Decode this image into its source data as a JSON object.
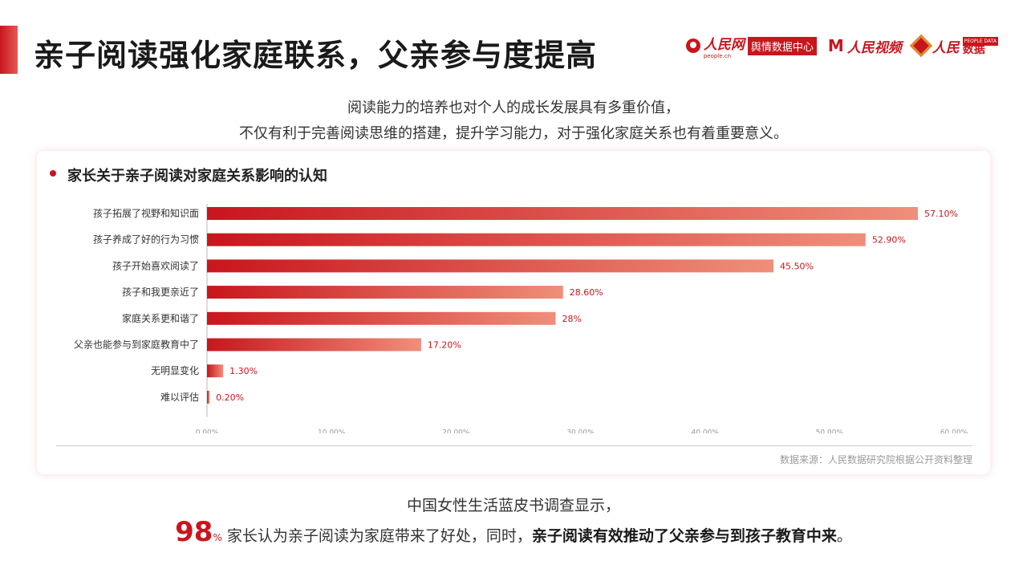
{
  "header": {
    "title": "亲子阅读强化家庭联系，父亲参与度提高",
    "accent_color": "#c8161d"
  },
  "logos": {
    "people_net": "人民网",
    "people_net_sub": "people.cn",
    "yuqing": "舆情数据中心",
    "people_video": "人民视频",
    "people_data_cn": "人民",
    "people_data_en": "PEOPLE DATA",
    "people_data_word": "数据"
  },
  "intro": {
    "line1": "阅读能力的培养也对个人的成长发展具有多重价值，",
    "line2": "不仅有利于完善阅读思维的搭建，提升学习能力，对于强化家庭关系也有着重要意义。"
  },
  "card": {
    "title": "家长关于亲子阅读对家庭关系影响的认知",
    "source": "数据来源：人民数据研究院根据公开资料整理"
  },
  "chart_data": {
    "type": "bar",
    "orientation": "horizontal",
    "categories": [
      "孩子拓展了视野和知识面",
      "孩子养成了好的行为习惯",
      "孩子开始喜欢阅读了",
      "孩子和我更亲近了",
      "家庭关系更和谐了",
      "父亲也能参与到家庭教育中了",
      "无明显变化",
      "难以评估"
    ],
    "values": [
      57.1,
      52.9,
      45.5,
      28.6,
      28,
      17.2,
      1.3,
      0.2
    ],
    "data_labels": [
      "57.10%",
      "52.90%",
      "45.50%",
      "28.60%",
      "28%",
      "17.20%",
      "1.30%",
      "0.20%"
    ],
    "xlim": [
      0,
      60
    ],
    "xticks": [
      "0.00%",
      "10.00%",
      "20.00%",
      "30.00%",
      "40.00%",
      "50.00%",
      "60.00%"
    ],
    "grid": false,
    "bar_color_start": "#c8161d",
    "bar_color_end": "#ef8f7a"
  },
  "footer": {
    "line1": "中国女性生活蓝皮书调查显示，",
    "big_number": "98",
    "percent": "%",
    "line2_normal": "家长认为亲子阅读为家庭带来了好处，同时，",
    "line2_bold": "亲子阅读有效推动了父亲参与到孩子教育中来",
    "line2_end": "。"
  }
}
